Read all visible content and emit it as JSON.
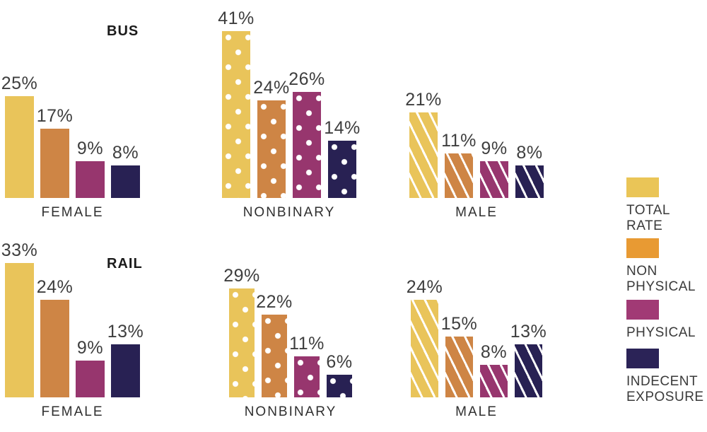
{
  "headers": {
    "bus": "BUS",
    "rail": "RAIL"
  },
  "legend": {
    "items": [
      {
        "label": "TOTAL RATE",
        "color": "#EAC557"
      },
      {
        "label": "NON PHYSICAL",
        "color": "#E89A33"
      },
      {
        "label": "PHYSICAL",
        "color": "#A13A75"
      },
      {
        "label": "INDECENT EXPOSURE",
        "color": "#2B2357"
      }
    ]
  },
  "chart_data": {
    "type": "bar",
    "title": "",
    "series": [
      "TOTAL RATE",
      "NON PHYSICAL",
      "PHYSICAL",
      "INDECENT EXPOSURE"
    ],
    "series_colors": [
      "#E9C45A",
      "#CE8545",
      "#97366E",
      "#282153"
    ],
    "value_format": "percent",
    "ylim": [
      0,
      45
    ],
    "grid": false,
    "legend_position": "right",
    "pattern_by_category": {
      "FEMALE": "solid",
      "NONBINARY": "dots",
      "MALE": "stripes"
    },
    "rows": [
      {
        "mode": "BUS",
        "groups": [
          {
            "category": "FEMALE",
            "pattern": "solid",
            "values": [
              25,
              17,
              9,
              8
            ],
            "value_labels": [
              "25%",
              "17%",
              "9%",
              "8%"
            ]
          },
          {
            "category": "NONBINARY",
            "pattern": "dots",
            "values": [
              41,
              24,
              26,
              14
            ],
            "value_labels": [
              "41%",
              "24%",
              "26%",
              "14%"
            ]
          },
          {
            "category": "MALE",
            "pattern": "stripes",
            "values": [
              21,
              11,
              9,
              8
            ],
            "value_labels": [
              "21%",
              "11%",
              "9%",
              "8%"
            ]
          }
        ]
      },
      {
        "mode": "RAIL",
        "groups": [
          {
            "category": "FEMALE",
            "pattern": "solid",
            "values": [
              33,
              24,
              9,
              13
            ],
            "value_labels": [
              "33%",
              "24%",
              "9%",
              "13%"
            ]
          },
          {
            "category": "NONBINARY",
            "pattern": "dots",
            "values": [
              29,
              22,
              11,
              6
            ],
            "value_labels": [
              "29%",
              "22%",
              "11%",
              "6%"
            ]
          },
          {
            "category": "MALE",
            "pattern": "stripes",
            "values": [
              24,
              15,
              8,
              13
            ],
            "value_labels": [
              "24%",
              "15%",
              "8%",
              "13%"
            ]
          }
        ]
      }
    ]
  }
}
